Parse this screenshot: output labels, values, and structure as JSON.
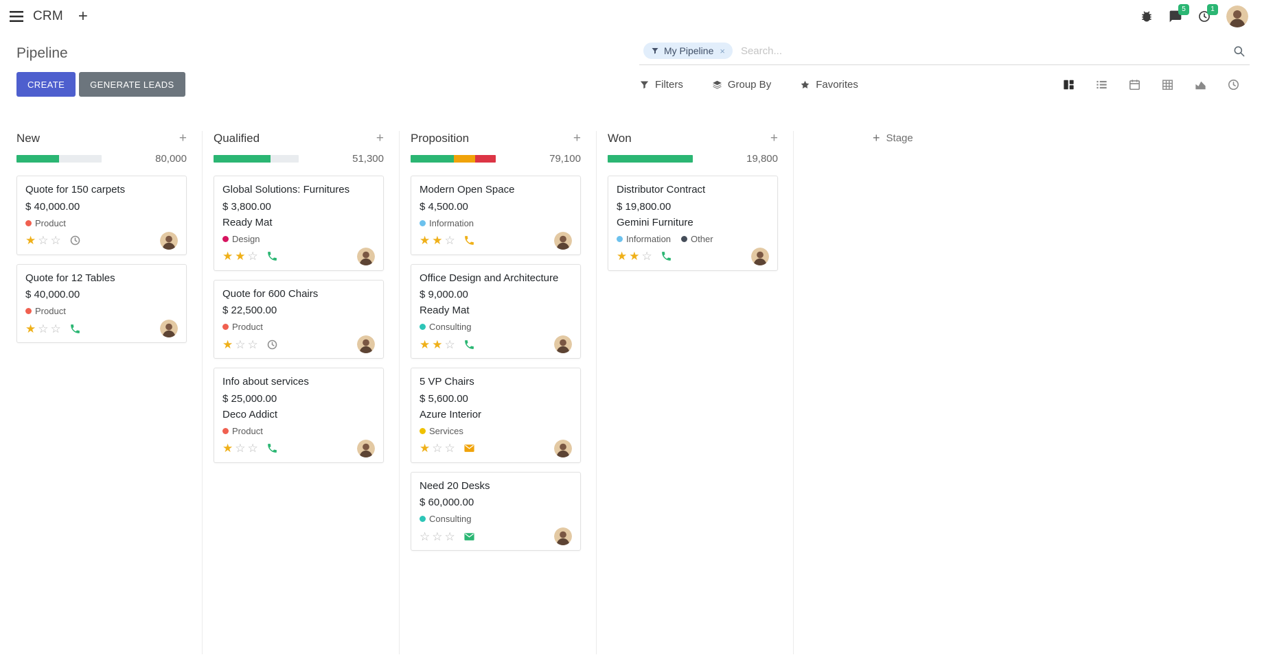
{
  "navbar": {
    "app_name": "CRM",
    "systray": {
      "messages_badge": "5",
      "activities_badge": "1"
    }
  },
  "control_panel": {
    "title": "Pipeline",
    "search": {
      "facet_label": "My Pipeline",
      "placeholder": "Search...",
      "remove_facet": "×"
    },
    "create_label": "CREATE",
    "generate_leads_label": "GENERATE LEADS",
    "filters_label": "Filters",
    "group_by_label": "Group By",
    "favorites_label": "Favorites",
    "view_switcher": [
      {
        "name": "kanban",
        "active": true
      },
      {
        "name": "list",
        "active": false
      },
      {
        "name": "calendar",
        "active": false
      },
      {
        "name": "pivot",
        "active": false
      },
      {
        "name": "graph",
        "active": false
      },
      {
        "name": "activity",
        "active": false
      }
    ]
  },
  "icons": {
    "plus": "+",
    "close": "×",
    "star_filled": "★",
    "star_empty": "☆"
  },
  "colors": {
    "primary": "#4e5fce",
    "secondary": "#6c757d",
    "success": "#2bb673",
    "warning": "#f0a30a",
    "danger": "#dc3545",
    "star": "#efb019",
    "star_empty": "#b9b9b9",
    "track": "#e9ecef"
  },
  "board": {
    "add_stage_label": "Stage",
    "columns": [
      {
        "name": "New",
        "counter": "80,000",
        "progress": [
          {
            "color": "success",
            "pct": 50
          }
        ],
        "cards": [
          {
            "title": "Quote for 150 carpets",
            "amount": "$ 40,000.00",
            "partner": null,
            "tags": [
              {
                "label": "Product",
                "color": "#f06050"
              }
            ],
            "stars": 1,
            "activity": {
              "type": "clock",
              "color": "#8f8f8f"
            }
          },
          {
            "title": "Quote for 12 Tables",
            "amount": "$ 40,000.00",
            "partner": null,
            "tags": [
              {
                "label": "Product",
                "color": "#f06050"
              }
            ],
            "stars": 1,
            "activity": {
              "type": "phone",
              "color": "#2bb673"
            }
          }
        ]
      },
      {
        "name": "Qualified",
        "counter": "51,300",
        "progress": [
          {
            "color": "success",
            "pct": 67
          }
        ],
        "cards": [
          {
            "title": "Global Solutions: Furnitures",
            "amount": "$ 3,800.00",
            "partner": "Ready Mat",
            "tags": [
              {
                "label": "Design",
                "color": "#d6145f"
              }
            ],
            "stars": 2,
            "activity": {
              "type": "phone",
              "color": "#2bb673"
            }
          },
          {
            "title": "Quote for 600 Chairs",
            "amount": "$ 22,500.00",
            "partner": null,
            "tags": [
              {
                "label": "Product",
                "color": "#f06050"
              }
            ],
            "stars": 1,
            "activity": {
              "type": "clock",
              "color": "#8f8f8f"
            }
          },
          {
            "title": "Info about services",
            "amount": "$ 25,000.00",
            "partner": "Deco Addict",
            "tags": [
              {
                "label": "Product",
                "color": "#f06050"
              }
            ],
            "stars": 1,
            "activity": {
              "type": "phone",
              "color": "#2bb673"
            }
          }
        ]
      },
      {
        "name": "Proposition",
        "counter": "79,100",
        "progress": [
          {
            "color": "success",
            "pct": 51
          },
          {
            "color": "warning",
            "pct": 25
          },
          {
            "color": "danger",
            "pct": 24
          }
        ],
        "cards": [
          {
            "title": "Modern Open Space",
            "amount": "$ 4,500.00",
            "partner": null,
            "tags": [
              {
                "label": "Information",
                "color": "#6cc1ed"
              }
            ],
            "stars": 2,
            "activity": {
              "type": "phone",
              "color": "#efb019"
            }
          },
          {
            "title": "Office Design and Architecture",
            "amount": "$ 9,000.00",
            "partner": "Ready Mat",
            "tags": [
              {
                "label": "Consulting",
                "color": "#2dc5b7"
              }
            ],
            "stars": 2,
            "activity": {
              "type": "phone",
              "color": "#2bb673"
            }
          },
          {
            "title": "5 VP Chairs",
            "amount": "$ 5,600.00",
            "partner": "Azure Interior",
            "tags": [
              {
                "label": "Services",
                "color": "#efc100"
              }
            ],
            "stars": 1,
            "activity": {
              "type": "envelope",
              "color": "#f0a30a"
            }
          },
          {
            "title": "Need 20 Desks",
            "amount": "$ 60,000.00",
            "partner": null,
            "tags": [
              {
                "label": "Consulting",
                "color": "#2dc5b7"
              }
            ],
            "stars": 0,
            "activity": {
              "type": "envelope",
              "color": "#2bb673"
            }
          }
        ]
      },
      {
        "name": "Won",
        "counter": "19,800",
        "progress": [
          {
            "color": "success",
            "pct": 100
          }
        ],
        "cards": [
          {
            "title": "Distributor Contract",
            "amount": "$ 19,800.00",
            "partner": "Gemini Furniture",
            "tags": [
              {
                "label": "Information",
                "color": "#6cc1ed"
              },
              {
                "label": "Other",
                "color": "#454d59"
              }
            ],
            "stars": 2,
            "activity": {
              "type": "phone",
              "color": "#2bb673"
            }
          }
        ]
      }
    ]
  }
}
